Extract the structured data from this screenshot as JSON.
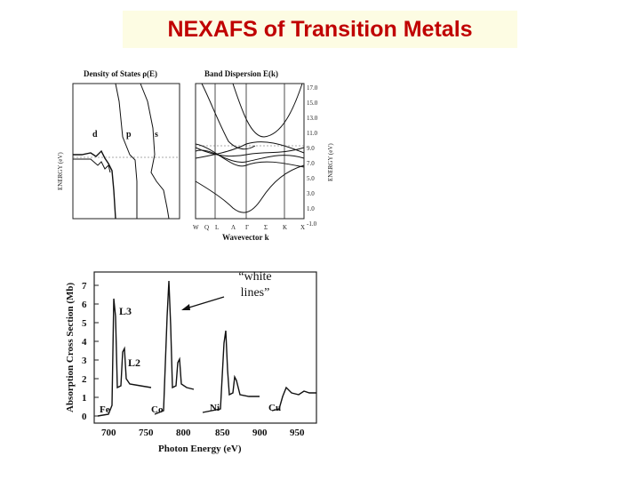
{
  "title": "NEXAFS of Transition Metals",
  "top_panel": {
    "dos_title": "Density of States ρ(E)",
    "band_title": "Band Dispersion E(k)",
    "energy_label": "ENERGY (eV)",
    "orbital_labels": [
      "d",
      "p",
      "s"
    ],
    "energy_ticks": [
      "-1.0",
      "1.0",
      "3.0",
      "5.0",
      "7.0",
      "9.0",
      "11.0",
      "13.0",
      "15.0",
      "17.0"
    ],
    "k_points": [
      "W",
      "Q",
      "L",
      "Λ",
      "Γ",
      "Σ",
      "K",
      "X"
    ],
    "wavevector_label": "Wavevector k"
  },
  "bottom_panel": {
    "y_axis_label": "Absorption Cross Section (Mb)",
    "y_ticks": [
      "0",
      "1",
      "2",
      "3",
      "4",
      "5",
      "6",
      "7"
    ],
    "x_axis_label": "Photon Energy (eV)",
    "x_ticks": [
      "700",
      "750",
      "800",
      "850",
      "900",
      "950"
    ],
    "edge_labels": [
      "L3",
      "L2"
    ],
    "element_labels": [
      "Fe",
      "Co",
      "Ni",
      "Cu"
    ]
  },
  "annotation": {
    "line1": "“white",
    "line2": "lines”"
  }
}
